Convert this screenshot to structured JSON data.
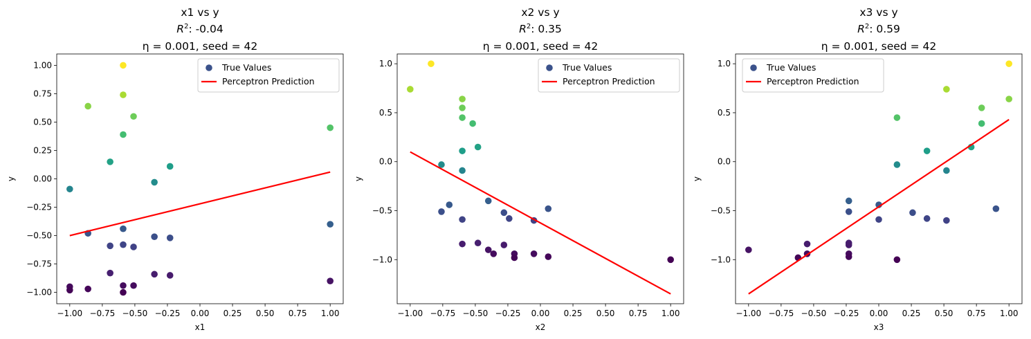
{
  "chart_data": [
    {
      "type": "scatter",
      "title": "x1 vs y",
      "r2_label": "R",
      "r2_value": ": -0.04",
      "subtitle": "η = 0.001, seed = 42",
      "xlabel": "x1",
      "ylabel": "y",
      "xlim": [
        -1.1,
        1.1
      ],
      "ylim": [
        -1.1,
        1.1
      ],
      "xticks": [
        -1.0,
        -0.75,
        -0.5,
        -0.25,
        0.0,
        0.25,
        0.5,
        0.75,
        1.0
      ],
      "xtick_labels": [
        "−1.00",
        "−0.75",
        "−0.50",
        "−0.25",
        "0.00",
        "0.25",
        "0.50",
        "0.75",
        "1.00"
      ],
      "yticks": [
        -1.0,
        -0.75,
        -0.5,
        -0.25,
        0.0,
        0.25,
        0.5,
        0.75,
        1.0
      ],
      "ytick_labels": [
        "−1.00",
        "−0.75",
        "−0.50",
        "−0.25",
        "0.00",
        "0.25",
        "0.50",
        "0.75",
        "1.00"
      ],
      "legend_position": "upper right",
      "legend": [
        "True Values",
        "Perceptron Prediction"
      ],
      "points": [
        [
          -1.0,
          -0.09
        ],
        [
          -1.0,
          -0.95
        ],
        [
          -1.0,
          -0.98
        ],
        [
          -0.86,
          -0.48
        ],
        [
          -0.86,
          0.64
        ],
        [
          -0.86,
          -0.97
        ],
        [
          -0.69,
          0.15
        ],
        [
          -0.69,
          -0.59
        ],
        [
          -0.69,
          -0.83
        ],
        [
          -0.59,
          1.0
        ],
        [
          -0.59,
          0.74
        ],
        [
          -0.59,
          0.39
        ],
        [
          -0.59,
          -0.44
        ],
        [
          -0.59,
          -0.58
        ],
        [
          -0.59,
          -0.94
        ],
        [
          -0.59,
          -1.0
        ],
        [
          -0.51,
          0.55
        ],
        [
          -0.51,
          -0.6
        ],
        [
          -0.51,
          -0.94
        ],
        [
          -0.35,
          -0.03
        ],
        [
          -0.35,
          -0.51
        ],
        [
          -0.35,
          -0.84
        ],
        [
          -0.23,
          0.11
        ],
        [
          -0.23,
          -0.52
        ],
        [
          -0.23,
          -0.85
        ],
        [
          1.0,
          0.45
        ],
        [
          1.0,
          -0.4
        ],
        [
          1.0,
          -0.9
        ]
      ],
      "prediction_line": [
        [
          -1.0,
          -0.5
        ],
        [
          1.0,
          0.06
        ]
      ]
    },
    {
      "type": "scatter",
      "title": "x2 vs y",
      "r2_label": "R",
      "r2_value": ": 0.35",
      "subtitle": "η = 0.001, seed = 42",
      "xlabel": "x2",
      "ylabel": "y",
      "xlim": [
        -1.1,
        1.1
      ],
      "ylim": [
        -1.45,
        1.1
      ],
      "xticks": [
        -1.0,
        -0.75,
        -0.5,
        -0.25,
        0.0,
        0.25,
        0.5,
        0.75,
        1.0
      ],
      "xtick_labels": [
        "−1.00",
        "−0.75",
        "−0.50",
        "−0.25",
        "0.00",
        "0.25",
        "0.50",
        "0.75",
        "1.00"
      ],
      "yticks": [
        -1.0,
        -0.5,
        0.0,
        0.5,
        1.0
      ],
      "ytick_labels": [
        "−1.0",
        "−0.5",
        "0.0",
        "0.5",
        "1.0"
      ],
      "legend_position": "upper right",
      "legend": [
        "True Values",
        "Perceptron Prediction"
      ],
      "points": [
        [
          -1.0,
          0.74
        ],
        [
          -0.84,
          1.0
        ],
        [
          -0.76,
          -0.03
        ],
        [
          -0.76,
          -0.51
        ],
        [
          -0.7,
          -0.44
        ],
        [
          -0.6,
          0.64
        ],
        [
          -0.6,
          0.55
        ],
        [
          -0.6,
          0.45
        ],
        [
          -0.6,
          0.11
        ],
        [
          -0.6,
          -0.09
        ],
        [
          -0.6,
          -0.59
        ],
        [
          -0.6,
          -0.84
        ],
        [
          -0.52,
          0.39
        ],
        [
          -0.48,
          0.15
        ],
        [
          -0.48,
          -0.83
        ],
        [
          -0.4,
          -0.4
        ],
        [
          -0.4,
          -0.9
        ],
        [
          -0.36,
          -0.94
        ],
        [
          -0.28,
          -0.52
        ],
        [
          -0.28,
          -0.85
        ],
        [
          -0.24,
          -0.58
        ],
        [
          -0.2,
          -0.94
        ],
        [
          -0.2,
          -0.98
        ],
        [
          -0.05,
          -0.6
        ],
        [
          -0.05,
          -0.94
        ],
        [
          0.06,
          -0.48
        ],
        [
          0.06,
          -0.97
        ],
        [
          1.0,
          -1.0
        ]
      ],
      "prediction_line": [
        [
          -1.0,
          0.1
        ],
        [
          1.0,
          -1.35
        ]
      ]
    },
    {
      "type": "scatter",
      "title": "x3 vs y",
      "r2_label": "R",
      "r2_value": ": 0.59",
      "subtitle": "η = 0.001, seed = 42",
      "xlabel": "x3",
      "ylabel": "y",
      "xlim": [
        -1.1,
        1.1
      ],
      "ylim": [
        -1.45,
        1.1
      ],
      "xticks": [
        -1.0,
        -0.75,
        -0.5,
        -0.25,
        0.0,
        0.25,
        0.5,
        0.75,
        1.0
      ],
      "xtick_labels": [
        "−1.00",
        "−0.75",
        "−0.50",
        "−0.25",
        "0.00",
        "0.25",
        "0.50",
        "0.75",
        "1.00"
      ],
      "yticks": [
        -1.0,
        -0.5,
        0.0,
        0.5,
        1.0
      ],
      "ytick_labels": [
        "−1.0",
        "−0.5",
        "0.0",
        "0.5",
        "1.0"
      ],
      "legend_position": "upper left",
      "legend": [
        "True Values",
        "Perceptron Prediction"
      ],
      "points": [
        [
          -1.0,
          -0.9
        ],
        [
          -0.62,
          -0.98
        ],
        [
          -0.55,
          -0.84
        ],
        [
          -0.55,
          -0.94
        ],
        [
          -0.23,
          -0.4
        ],
        [
          -0.23,
          -0.51
        ],
        [
          -0.23,
          -0.83
        ],
        [
          -0.23,
          -0.85
        ],
        [
          -0.23,
          -0.94
        ],
        [
          -0.23,
          -0.97
        ],
        [
          0.0,
          -0.44
        ],
        [
          0.0,
          -0.59
        ],
        [
          0.14,
          0.45
        ],
        [
          0.14,
          -0.03
        ],
        [
          0.14,
          -1.0
        ],
        [
          0.26,
          -0.52
        ],
        [
          0.37,
          0.11
        ],
        [
          0.37,
          -0.58
        ],
        [
          0.52,
          0.74
        ],
        [
          0.52,
          -0.09
        ],
        [
          0.52,
          -0.6
        ],
        [
          0.71,
          0.15
        ],
        [
          0.79,
          0.55
        ],
        [
          0.79,
          0.39
        ],
        [
          0.9,
          -0.48
        ],
        [
          1.0,
          1.0
        ],
        [
          1.0,
          0.64
        ]
      ],
      "prediction_line": [
        [
          -1.0,
          -1.35
        ],
        [
          1.0,
          0.43
        ]
      ]
    }
  ],
  "colors": {
    "prediction_line": "#ff0000",
    "legend_marker": "#3b528b",
    "axes": "#000000",
    "legend_border": "#cccccc",
    "viridis": [
      "#440154",
      "#482878",
      "#3e4989",
      "#31688e",
      "#26828e",
      "#1f9e89",
      "#35b779",
      "#6ece58",
      "#b5de2b",
      "#fde725"
    ]
  }
}
